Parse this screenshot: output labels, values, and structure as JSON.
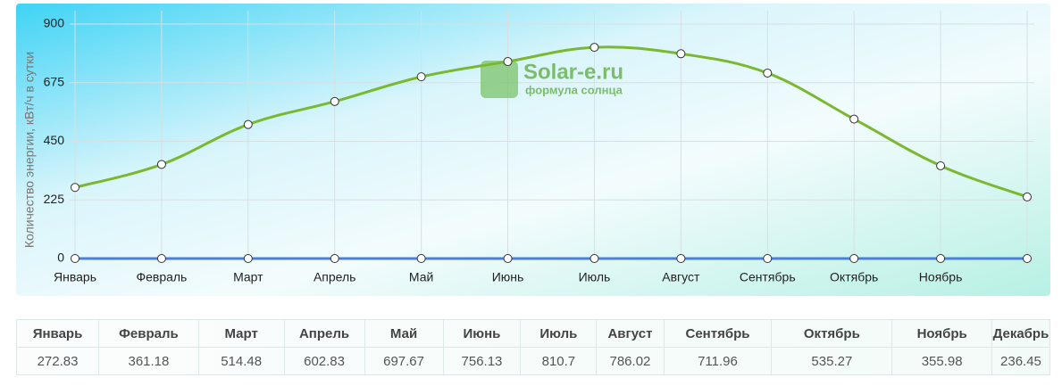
{
  "chart_data": {
    "type": "line",
    "y_label": "Количество энергии, кВт/ч в сутки",
    "watermark": {
      "title": "Solar-e.ru",
      "subtitle": "формула солнца"
    },
    "categories": [
      "Январь",
      "Февраль",
      "Март",
      "Апрель",
      "Май",
      "Июнь",
      "Июль",
      "Август",
      "Сентябрь",
      "Октябрь",
      "Ноябрь",
      null
    ],
    "series": [
      {
        "color": "#7cb82f",
        "values": [
          272.83,
          361.18,
          514.48,
          602.83,
          697.67,
          756.13,
          810.7,
          786.02,
          711.96,
          535.27,
          355.98,
          236.45
        ]
      },
      {
        "color": "#4a7fe0",
        "values": [
          0,
          0,
          0,
          0,
          0,
          0,
          0,
          0,
          0,
          0,
          0,
          0
        ]
      }
    ],
    "ylim": [
      0,
      900
    ],
    "yticks": [
      0,
      225,
      450,
      675,
      900
    ],
    "grid": true
  },
  "table": {
    "header": [
      "Январь",
      "Февраль",
      "Март",
      "Апрель",
      "Май",
      "Июнь",
      "Июль",
      "Август",
      "Сентябрь",
      "Октябрь",
      "Ноябрь",
      "Декабрь"
    ],
    "rows": [
      [
        272.83,
        361.18,
        514.48,
        602.83,
        697.67,
        756.13,
        810.7,
        786.02,
        711.96,
        535.27,
        355.98,
        236.45
      ]
    ]
  }
}
